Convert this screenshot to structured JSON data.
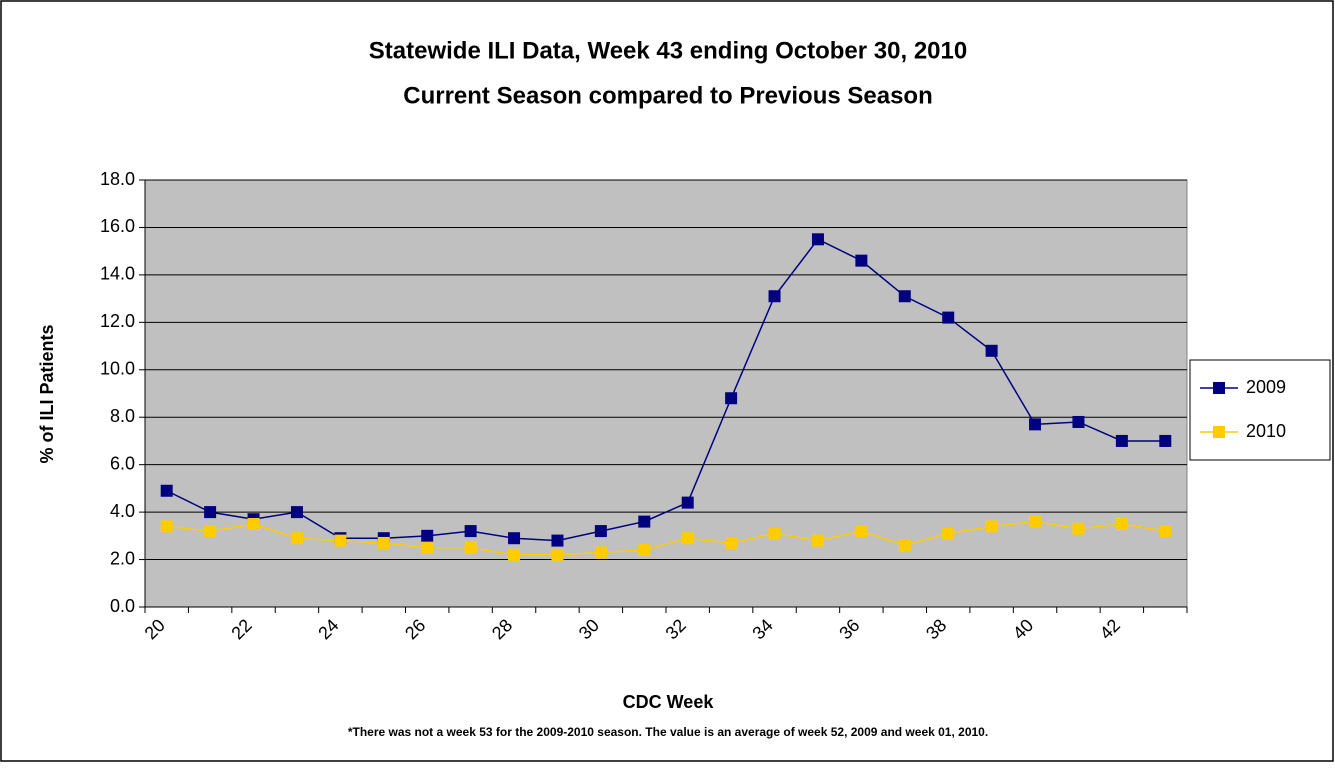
{
  "chart_data": {
    "type": "line",
    "title": "Statewide ILI Data, Week 43 ending October 30, 2010",
    "subtitle": "Current Season compared to Previous Season",
    "x_label": "CDC Week",
    "y_label": "% of ILI Patients",
    "footnote": "*There was not a week 53 for the 2009-2010 season. The value is an average of week 52, 2009 and week 01, 2010.",
    "categories": [
      20,
      null,
      22,
      null,
      24,
      null,
      26,
      null,
      28,
      null,
      30,
      null,
      32,
      null,
      34,
      null,
      36,
      null,
      38,
      null,
      40,
      null,
      42,
      null
    ],
    "series": [
      {
        "name": "2009",
        "color": "#000080",
        "values": [
          4.9,
          4.0,
          3.7,
          4.0,
          2.9,
          2.9,
          3.0,
          3.2,
          2.9,
          2.8,
          3.2,
          3.6,
          4.4,
          8.8,
          13.1,
          15.5,
          14.6,
          13.1,
          12.2,
          10.8,
          7.7,
          7.8,
          7.0,
          7.0
        ]
      },
      {
        "name": "2010",
        "color": "#ffcc00",
        "values": [
          3.4,
          3.2,
          3.5,
          2.9,
          2.8,
          2.7,
          2.5,
          2.5,
          2.2,
          2.2,
          2.3,
          2.4,
          2.9,
          2.7,
          3.1,
          2.8,
          3.2,
          2.6,
          3.1,
          3.4,
          3.6,
          3.3,
          3.5,
          3.2
        ]
      }
    ],
    "ylim": [
      0,
      18
    ],
    "yticks": [
      {
        "value": 0,
        "label": "0.0"
      },
      {
        "value": 2,
        "label": "2.0"
      },
      {
        "value": 4,
        "label": "4.0"
      },
      {
        "value": 6,
        "label": "6.0"
      },
      {
        "value": 8,
        "label": "8.0"
      },
      {
        "value": 10,
        "label": "10.0"
      },
      {
        "value": 12,
        "label": "12.0"
      },
      {
        "value": 14,
        "label": "14.0"
      },
      {
        "value": 16,
        "label": "16.0"
      },
      {
        "value": 18,
        "label": "18.0"
      }
    ],
    "grid": true,
    "plot_background": "#c0c0c0",
    "legend": "right"
  }
}
